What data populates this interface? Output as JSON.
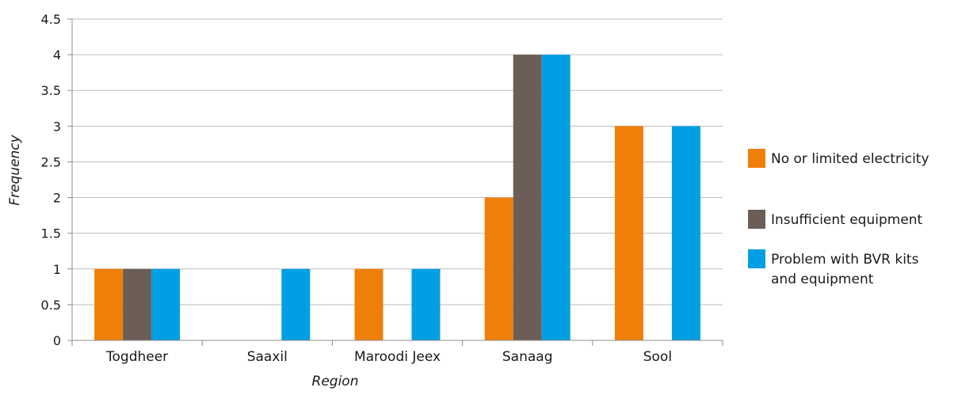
{
  "chart_data": {
    "type": "bar",
    "title": "",
    "xlabel": "Region",
    "ylabel": "Frequency",
    "categories": [
      "Togdheer",
      "Saaxil",
      "Maroodi Jeex",
      "Sanaag",
      "Sool"
    ],
    "ylim": [
      0,
      4.5
    ],
    "yticks": [
      "0",
      "0.5",
      "1",
      "1.5",
      "2",
      "2.5",
      "3",
      "3.5",
      "4",
      "4.5"
    ],
    "grid": true,
    "legend_position": "right",
    "series": [
      {
        "name": "No or limited electricity",
        "legend_lines": [
          "No or limited electricity"
        ],
        "color": "#F07F09",
        "values": [
          1,
          0,
          1,
          2,
          3
        ]
      },
      {
        "name": "Insufficient equipment",
        "legend_lines": [
          "Insufficient equipment"
        ],
        "color": "#6C5D57",
        "values": [
          1,
          0,
          0,
          4,
          0
        ]
      },
      {
        "name": "Problem with BVR kits and equipment",
        "legend_lines": [
          "Problem with BVR kits",
          "and equipment"
        ],
        "color": "#009FE3",
        "values": [
          1,
          1,
          1,
          4,
          3
        ]
      }
    ]
  }
}
